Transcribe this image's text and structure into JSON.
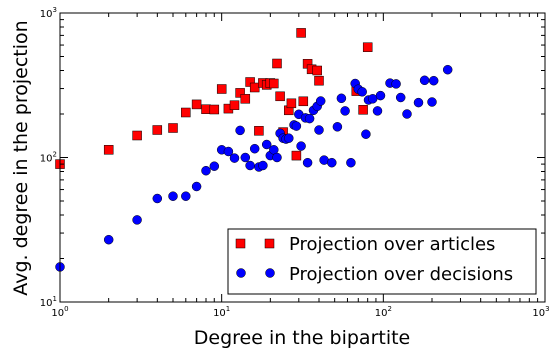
{
  "chart_data": {
    "type": "scatter",
    "xlabel": "Degree in the bipartite",
    "ylabel": "Avg. degree in the projection",
    "xscale": "log",
    "yscale": "log",
    "xlim": [
      1,
      1000
    ],
    "ylim": [
      10,
      1000
    ],
    "grid": false,
    "legend_position": "bottom-right",
    "x_ticks": [
      {
        "value": 1,
        "base": "10",
        "exp": "0"
      },
      {
        "value": 10,
        "base": "10",
        "exp": "1"
      },
      {
        "value": 100,
        "base": "10",
        "exp": "2"
      },
      {
        "value": 1000,
        "base": "10",
        "exp": "3"
      }
    ],
    "y_ticks": [
      {
        "value": 10,
        "base": "10",
        "exp": "1"
      },
      {
        "value": 100,
        "base": "10",
        "exp": "2"
      },
      {
        "value": 1000,
        "base": "10",
        "exp": "3"
      }
    ],
    "series": [
      {
        "name": "Projection over articles",
        "marker": "square",
        "color": "#ff0000",
        "points": [
          [
            1,
            90
          ],
          [
            2,
            113
          ],
          [
            3,
            142
          ],
          [
            4,
            155
          ],
          [
            5,
            160
          ],
          [
            6,
            205
          ],
          [
            7,
            233
          ],
          [
            8,
            216
          ],
          [
            9,
            215
          ],
          [
            10,
            298
          ],
          [
            11,
            218
          ],
          [
            12,
            230
          ],
          [
            13,
            280
          ],
          [
            14,
            255
          ],
          [
            15,
            333
          ],
          [
            16,
            305
          ],
          [
            17,
            153
          ],
          [
            18,
            328
          ],
          [
            19,
            318
          ],
          [
            20,
            328
          ],
          [
            21,
            325
          ],
          [
            22,
            447
          ],
          [
            23,
            265
          ],
          [
            24,
            150
          ],
          [
            26,
            212
          ],
          [
            27,
            237
          ],
          [
            29,
            103
          ],
          [
            31,
            728
          ],
          [
            32,
            245
          ],
          [
            34,
            445
          ],
          [
            36,
            408
          ],
          [
            39,
            400
          ],
          [
            40,
            340
          ],
          [
            75,
            214
          ],
          [
            80,
            580
          ],
          [
            68,
            288
          ]
        ]
      },
      {
        "name": "Projection over decisions",
        "marker": "circle",
        "color": "#0000ff",
        "points": [
          [
            1,
            17.5
          ],
          [
            2,
            27
          ],
          [
            3,
            37
          ],
          [
            4,
            52
          ],
          [
            5,
            54
          ],
          [
            6,
            54
          ],
          [
            7,
            63
          ],
          [
            8,
            81
          ],
          [
            9,
            87
          ],
          [
            10,
            113
          ],
          [
            11,
            110
          ],
          [
            12,
            99
          ],
          [
            13,
            154
          ],
          [
            14,
            100
          ],
          [
            15,
            88
          ],
          [
            16,
            115
          ],
          [
            17,
            86
          ],
          [
            18,
            88
          ],
          [
            19,
            123
          ],
          [
            20,
            103
          ],
          [
            21,
            113
          ],
          [
            22,
            100
          ],
          [
            23,
            147
          ],
          [
            24,
            136
          ],
          [
            25,
            134
          ],
          [
            26,
            136
          ],
          [
            28,
            168
          ],
          [
            29,
            165
          ],
          [
            30,
            199
          ],
          [
            31,
            120
          ],
          [
            33,
            188
          ],
          [
            34,
            92
          ],
          [
            35,
            186
          ],
          [
            37,
            212
          ],
          [
            39,
            226
          ],
          [
            40,
            155
          ],
          [
            41,
            246
          ],
          [
            43,
            96
          ],
          [
            48,
            92
          ],
          [
            52,
            163
          ],
          [
            55,
            257
          ],
          [
            58,
            210
          ],
          [
            63,
            92
          ],
          [
            67,
            325
          ],
          [
            70,
            297
          ],
          [
            74,
            285
          ],
          [
            78,
            145
          ],
          [
            81,
            250
          ],
          [
            86,
            255
          ],
          [
            92,
            210
          ],
          [
            96,
            268
          ],
          [
            110,
            327
          ],
          [
            120,
            323
          ],
          [
            128,
            260
          ],
          [
            140,
            200
          ],
          [
            165,
            240
          ],
          [
            180,
            342
          ],
          [
            200,
            242
          ],
          [
            205,
            340
          ],
          [
            250,
            405
          ]
        ]
      }
    ]
  }
}
